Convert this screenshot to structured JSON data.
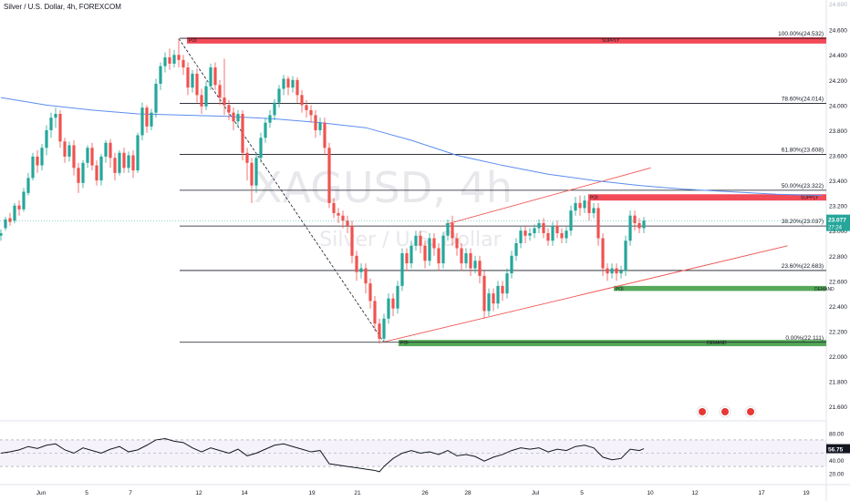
{
  "header": {
    "title": "Silver / U.S. Dollar, 4h, FOREXCOM"
  },
  "watermark": {
    "symbol": "XAGUSD, 4h",
    "name": "Silver / U.S. Dollar"
  },
  "price_axis": {
    "labels": [
      "24.600",
      "24.400",
      "24.200",
      "24.000",
      "23.800",
      "23.600",
      "23.400",
      "23.200",
      "23.000",
      "22.800",
      "22.600",
      "22.400",
      "22.200",
      "22.000",
      "21.800",
      "21.600"
    ],
    "top_label": "24.600"
  },
  "current_price": {
    "value": "23.077",
    "countdown": "27:24",
    "color": "#26a69a"
  },
  "rsi": {
    "value": "56.75",
    "axis_labels": [
      "80.00",
      "60.00",
      "40.00",
      "20.00"
    ]
  },
  "time_axis": [
    "Jun",
    "5",
    "7",
    "12",
    "14",
    "19",
    "21",
    "26",
    "28",
    "Jul",
    "5",
    "10",
    "12",
    "17",
    "19"
  ],
  "fib_levels": [
    {
      "label": "100.00%(24.532)",
      "price": 24.532
    },
    {
      "label": "78.60%(24.014)",
      "price": 24.014
    },
    {
      "label": "61.80%(23.608)",
      "price": 23.608
    },
    {
      "label": "50.00%(23.322)",
      "price": 23.322
    },
    {
      "label": "38.20%(23.037)",
      "price": 23.037
    },
    {
      "label": "23.60%(22.683)",
      "price": 22.683
    },
    {
      "label": "0.00%(22.111)",
      "price": 22.111
    }
  ],
  "zones": [
    {
      "tag": "POI",
      "label": "SUPPLY",
      "kind": "supply",
      "top": 24.54,
      "bottom": 24.49
    },
    {
      "tag": "POI",
      "label": "SUPPLY",
      "kind": "supply",
      "top": 23.29,
      "bottom": 23.24
    },
    {
      "tag": "POI",
      "label": "DEMAND",
      "kind": "demand",
      "top": 22.56,
      "bottom": 22.52
    },
    {
      "tag": "POI",
      "label": "DEMAND",
      "kind": "demand",
      "top": 22.13,
      "bottom": 22.08
    }
  ],
  "colors": {
    "bull": "#26a69a",
    "bear": "#ef5350",
    "supply": "#f23645",
    "demand": "#43a047",
    "ma": "#5b8def",
    "channel": "#ef5350"
  },
  "chart_data": {
    "type": "candlestick",
    "symbol": "XAGUSD",
    "timeframe": "4h",
    "ylim": [
      21.5,
      24.75
    ],
    "ma_line": [
      [
        0,
        24.06
      ],
      [
        20,
        24.0
      ],
      [
        40,
        23.96
      ],
      [
        60,
        23.93
      ],
      [
        80,
        23.92
      ],
      [
        100,
        23.91
      ],
      [
        120,
        23.89
      ],
      [
        140,
        23.86
      ],
      [
        160,
        23.82
      ],
      [
        180,
        23.72
      ],
      [
        200,
        23.6
      ],
      [
        220,
        23.52
      ],
      [
        240,
        23.45
      ],
      [
        260,
        23.4
      ],
      [
        280,
        23.36
      ],
      [
        300,
        23.33
      ],
      [
        320,
        23.31
      ],
      [
        340,
        23.29
      ],
      [
        360,
        23.28
      ]
    ],
    "channel_upper": [
      [
        195,
        23.05
      ],
      [
        285,
        23.5
      ]
    ],
    "channel_lower": [
      [
        167,
        22.11
      ],
      [
        345,
        22.88
      ]
    ],
    "diagonal": [
      [
        78,
        24.53
      ],
      [
        168,
        22.11
      ]
    ],
    "candles": [
      [
        0,
        22.96,
        22.98,
        22.92,
        23.01
      ],
      [
        2,
        23.02,
        23.09,
        23.0,
        23.11
      ],
      [
        4,
        23.1,
        23.07,
        23.04,
        23.14
      ],
      [
        6,
        23.08,
        23.2,
        23.06,
        23.22
      ],
      [
        8,
        23.2,
        23.17,
        23.12,
        23.24
      ],
      [
        10,
        23.17,
        23.31,
        23.15,
        23.34
      ],
      [
        12,
        23.3,
        23.42,
        23.28,
        23.46
      ],
      [
        14,
        23.42,
        23.59,
        23.4,
        23.62
      ],
      [
        16,
        23.59,
        23.52,
        23.46,
        23.64
      ],
      [
        18,
        23.52,
        23.66,
        23.48,
        23.69
      ],
      [
        20,
        23.66,
        23.8,
        23.6,
        23.84
      ],
      [
        22,
        23.8,
        23.9,
        23.74,
        23.94
      ],
      [
        24,
        23.9,
        23.93,
        23.82,
        23.98
      ],
      [
        26,
        23.93,
        23.71,
        23.66,
        23.96
      ],
      [
        28,
        23.71,
        23.59,
        23.54,
        23.74
      ],
      [
        30,
        23.59,
        23.68,
        23.55,
        23.71
      ],
      [
        32,
        23.68,
        23.5,
        23.44,
        23.72
      ],
      [
        34,
        23.5,
        23.38,
        23.3,
        23.54
      ],
      [
        36,
        23.38,
        23.54,
        23.34,
        23.56
      ],
      [
        38,
        23.54,
        23.66,
        23.5,
        23.68
      ],
      [
        40,
        23.66,
        23.52,
        23.48,
        23.7
      ],
      [
        42,
        23.52,
        23.4,
        23.36,
        23.56
      ],
      [
        44,
        23.4,
        23.59,
        23.36,
        23.61
      ],
      [
        46,
        23.59,
        23.7,
        23.54,
        23.72
      ],
      [
        48,
        23.7,
        23.58,
        23.5,
        23.73
      ],
      [
        50,
        23.58,
        23.46,
        23.4,
        23.62
      ],
      [
        52,
        23.46,
        23.62,
        23.44,
        23.64
      ],
      [
        54,
        23.62,
        23.5,
        23.46,
        23.66
      ],
      [
        56,
        23.5,
        23.6,
        23.46,
        23.63
      ],
      [
        58,
        23.6,
        23.48,
        23.42,
        23.64
      ],
      [
        60,
        23.48,
        23.76,
        23.46,
        23.78
      ],
      [
        62,
        23.76,
        23.98,
        23.72,
        24.02
      ],
      [
        64,
        23.98,
        23.83,
        23.78,
        24.0
      ],
      [
        66,
        23.83,
        23.94,
        23.8,
        23.97
      ],
      [
        68,
        23.94,
        24.17,
        23.9,
        24.21
      ],
      [
        70,
        24.17,
        24.31,
        24.12,
        24.34
      ],
      [
        72,
        24.31,
        24.38,
        24.26,
        24.42
      ],
      [
        74,
        24.38,
        24.33,
        24.28,
        24.45
      ],
      [
        76,
        24.33,
        24.4,
        24.3,
        24.44
      ],
      [
        78,
        24.4,
        24.36,
        24.3,
        24.53
      ],
      [
        80,
        24.36,
        24.3,
        24.24,
        24.4
      ],
      [
        82,
        24.3,
        24.14,
        24.08,
        24.34
      ],
      [
        84,
        24.14,
        24.25,
        24.1,
        24.28
      ],
      [
        86,
        24.25,
        24.08,
        24.02,
        24.29
      ],
      [
        88,
        24.08,
        23.99,
        23.93,
        24.13
      ],
      [
        90,
        23.99,
        24.15,
        23.96,
        24.19
      ],
      [
        92,
        24.15,
        24.3,
        24.12,
        24.33
      ],
      [
        94,
        24.3,
        24.16,
        24.12,
        24.34
      ],
      [
        96,
        24.16,
        24.06,
        24.0,
        24.2
      ],
      [
        98,
        24.06,
        24.0,
        23.92,
        24.37
      ],
      [
        100,
        24.0,
        23.94,
        23.88,
        24.04
      ],
      [
        102,
        23.94,
        23.87,
        23.8,
        23.98
      ],
      [
        104,
        23.87,
        23.93,
        23.82,
        23.96
      ],
      [
        106,
        23.93,
        23.62,
        23.56,
        23.96
      ],
      [
        108,
        23.62,
        23.54,
        23.4,
        23.66
      ],
      [
        110,
        23.54,
        23.36,
        23.22,
        23.58
      ],
      [
        112,
        23.36,
        23.58,
        23.3,
        23.62
      ],
      [
        114,
        23.58,
        23.74,
        23.54,
        23.78
      ],
      [
        116,
        23.74,
        23.86,
        23.7,
        23.9
      ],
      [
        118,
        23.86,
        23.92,
        23.82,
        23.96
      ],
      [
        120,
        23.92,
        24.02,
        23.88,
        24.05
      ],
      [
        122,
        24.02,
        24.13,
        23.98,
        24.16
      ],
      [
        124,
        24.13,
        24.21,
        24.08,
        24.24
      ],
      [
        126,
        24.21,
        24.14,
        24.08,
        24.23
      ],
      [
        128,
        24.14,
        24.2,
        24.1,
        24.23
      ],
      [
        130,
        24.2,
        24.08,
        24.02,
        24.22
      ],
      [
        132,
        24.08,
        24.0,
        23.94,
        24.12
      ],
      [
        134,
        24.0,
        23.96,
        23.9,
        24.04
      ],
      [
        136,
        23.96,
        23.92,
        23.86,
        24.0
      ],
      [
        138,
        23.92,
        23.8,
        23.74,
        23.96
      ],
      [
        140,
        23.8,
        23.86,
        23.76,
        23.9
      ],
      [
        142,
        23.86,
        23.66,
        23.6,
        23.9
      ],
      [
        144,
        23.66,
        23.22,
        23.18,
        23.7
      ],
      [
        146,
        23.22,
        23.14,
        23.1,
        23.26
      ],
      [
        148,
        23.14,
        23.12,
        23.06,
        23.18
      ],
      [
        150,
        23.12,
        23.08,
        23.02,
        23.16
      ],
      [
        152,
        23.08,
        23.04,
        22.98,
        23.12
      ],
      [
        154,
        23.04,
        22.8,
        22.74,
        23.08
      ],
      [
        156,
        22.8,
        22.67,
        22.6,
        22.84
      ],
      [
        158,
        22.67,
        22.7,
        22.62,
        22.74
      ],
      [
        160,
        22.7,
        22.58,
        22.5,
        22.74
      ],
      [
        162,
        22.58,
        22.44,
        22.38,
        22.62
      ],
      [
        164,
        22.44,
        22.26,
        22.2,
        22.48
      ],
      [
        166,
        22.26,
        22.14,
        22.1,
        22.3
      ],
      [
        168,
        22.14,
        22.3,
        22.11,
        22.34
      ],
      [
        170,
        22.3,
        22.46,
        22.26,
        22.5
      ],
      [
        172,
        22.46,
        22.38,
        22.32,
        22.5
      ],
      [
        174,
        22.38,
        22.56,
        22.34,
        22.6
      ],
      [
        176,
        22.56,
        22.82,
        22.52,
        22.86
      ],
      [
        178,
        22.82,
        22.74,
        22.68,
        22.86
      ],
      [
        180,
        22.74,
        22.88,
        22.7,
        22.92
      ],
      [
        182,
        22.88,
        22.96,
        22.84,
        23.0
      ],
      [
        184,
        22.96,
        22.88,
        22.82,
        23.0
      ],
      [
        186,
        22.88,
        22.76,
        22.7,
        22.92
      ],
      [
        188,
        22.76,
        22.94,
        22.72,
        22.98
      ],
      [
        190,
        22.94,
        22.86,
        22.8,
        22.98
      ],
      [
        192,
        22.86,
        22.74,
        22.68,
        22.9
      ],
      [
        194,
        22.74,
        22.96,
        22.7,
        22.99
      ],
      [
        196,
        22.96,
        23.06,
        22.92,
        23.09
      ],
      [
        198,
        23.06,
        22.94,
        22.88,
        23.12
      ],
      [
        200,
        22.94,
        22.86,
        22.8,
        22.98
      ],
      [
        202,
        22.86,
        22.74,
        22.68,
        22.9
      ],
      [
        204,
        22.74,
        22.82,
        22.7,
        22.86
      ],
      [
        206,
        22.82,
        22.7,
        22.64,
        22.86
      ],
      [
        208,
        22.7,
        22.76,
        22.66,
        22.8
      ],
      [
        210,
        22.76,
        22.64,
        22.58,
        22.8
      ],
      [
        212,
        22.64,
        22.36,
        22.3,
        22.68
      ],
      [
        214,
        22.36,
        22.5,
        22.32,
        22.54
      ],
      [
        216,
        22.5,
        22.42,
        22.36,
        22.54
      ],
      [
        218,
        22.42,
        22.56,
        22.38,
        22.6
      ],
      [
        220,
        22.56,
        22.5,
        22.44,
        22.6
      ],
      [
        222,
        22.5,
        22.66,
        22.46,
        22.7
      ],
      [
        224,
        22.66,
        22.8,
        22.62,
        22.84
      ],
      [
        226,
        22.8,
        22.9,
        22.76,
        22.94
      ],
      [
        228,
        22.9,
        23.0,
        22.86,
        23.03
      ],
      [
        230,
        23.0,
        22.96,
        22.9,
        23.04
      ],
      [
        232,
        22.96,
        22.98,
        22.92,
        23.02
      ],
      [
        234,
        22.98,
        23.02,
        22.94,
        23.05
      ],
      [
        236,
        23.02,
        23.06,
        22.98,
        23.09
      ],
      [
        238,
        23.06,
        22.98,
        22.94,
        23.1
      ],
      [
        240,
        22.98,
        22.92,
        22.88,
        23.02
      ],
      [
        242,
        22.92,
        23.04,
        22.88,
        23.07
      ],
      [
        244,
        23.04,
        22.98,
        22.94,
        23.08
      ],
      [
        246,
        22.98,
        22.94,
        22.9,
        23.02
      ],
      [
        248,
        22.94,
        23.0,
        22.9,
        23.03
      ],
      [
        250,
        23.0,
        23.16,
        22.96,
        23.2
      ],
      [
        252,
        23.16,
        23.22,
        23.12,
        23.27
      ],
      [
        254,
        23.22,
        23.18,
        23.12,
        23.28
      ],
      [
        256,
        23.18,
        23.24,
        23.14,
        23.28
      ],
      [
        258,
        23.24,
        23.14,
        23.08,
        23.28
      ],
      [
        260,
        23.14,
        23.18,
        23.1,
        23.22
      ],
      [
        262,
        23.18,
        22.94,
        22.88,
        23.22
      ],
      [
        264,
        22.94,
        22.7,
        22.64,
        22.98
      ],
      [
        266,
        22.7,
        22.66,
        22.6,
        22.74
      ],
      [
        268,
        22.66,
        22.7,
        22.62,
        22.74
      ],
      [
        270,
        22.7,
        22.66,
        22.6,
        22.74
      ],
      [
        272,
        22.66,
        22.68,
        22.62,
        22.72
      ],
      [
        274,
        22.68,
        22.92,
        22.64,
        22.96
      ],
      [
        276,
        22.92,
        23.12,
        22.88,
        23.16
      ],
      [
        278,
        23.12,
        23.06,
        23.0,
        23.16
      ],
      [
        280,
        23.06,
        23.02,
        22.98,
        23.1
      ],
      [
        282,
        23.02,
        23.08,
        22.98,
        23.11
      ]
    ],
    "rsi": [
      [
        0,
        50
      ],
      [
        4,
        52
      ],
      [
        8,
        55
      ],
      [
        12,
        60
      ],
      [
        16,
        57
      ],
      [
        20,
        62
      ],
      [
        24,
        64
      ],
      [
        28,
        55
      ],
      [
        32,
        50
      ],
      [
        36,
        58
      ],
      [
        40,
        54
      ],
      [
        44,
        50
      ],
      [
        48,
        56
      ],
      [
        52,
        60
      ],
      [
        56,
        52
      ],
      [
        60,
        55
      ],
      [
        64,
        62
      ],
      [
        68,
        70
      ],
      [
        72,
        72
      ],
      [
        76,
        68
      ],
      [
        80,
        66
      ],
      [
        84,
        58
      ],
      [
        88,
        52
      ],
      [
        92,
        58
      ],
      [
        96,
        54
      ],
      [
        100,
        50
      ],
      [
        104,
        56
      ],
      [
        108,
        46
      ],
      [
        112,
        50
      ],
      [
        116,
        56
      ],
      [
        120,
        62
      ],
      [
        124,
        64
      ],
      [
        128,
        60
      ],
      [
        132,
        56
      ],
      [
        136,
        52
      ],
      [
        140,
        54
      ],
      [
        144,
        34
      ],
      [
        148,
        32
      ],
      [
        152,
        30
      ],
      [
        156,
        28
      ],
      [
        160,
        26
      ],
      [
        164,
        24
      ],
      [
        166,
        22
      ],
      [
        168,
        30
      ],
      [
        172,
        42
      ],
      [
        176,
        50
      ],
      [
        180,
        54
      ],
      [
        184,
        50
      ],
      [
        188,
        52
      ],
      [
        192,
        48
      ],
      [
        196,
        54
      ],
      [
        200,
        46
      ],
      [
        204,
        48
      ],
      [
        208,
        45
      ],
      [
        212,
        38
      ],
      [
        216,
        44
      ],
      [
        220,
        48
      ],
      [
        224,
        54
      ],
      [
        228,
        58
      ],
      [
        232,
        56
      ],
      [
        236,
        58
      ],
      [
        240,
        52
      ],
      [
        244,
        56
      ],
      [
        248,
        54
      ],
      [
        252,
        60
      ],
      [
        256,
        62
      ],
      [
        260,
        58
      ],
      [
        264,
        44
      ],
      [
        268,
        40
      ],
      [
        272,
        42
      ],
      [
        276,
        56
      ],
      [
        280,
        54
      ],
      [
        282,
        56.75
      ]
    ]
  }
}
